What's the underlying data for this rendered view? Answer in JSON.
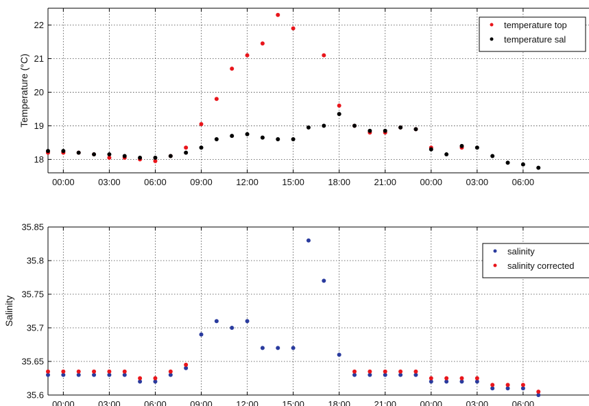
{
  "chart_data": [
    {
      "type": "scatter",
      "ylabel": "Temperature (°C)",
      "xlabel": "",
      "x_tick_labels": [
        "00:00",
        "03:00",
        "06:00",
        "09:00",
        "12:00",
        "15:00",
        "18:00",
        "21:00",
        "00:00",
        "03:00",
        "06:00"
      ],
      "xlim_hours": [
        -1,
        34.3
      ],
      "ylim": [
        17.6,
        22.5
      ],
      "yticks": [
        18,
        19,
        20,
        21,
        22
      ],
      "grid": true,
      "legend_position": "top-right",
      "series": [
        {
          "name": "temperature top",
          "color": "#e8161c",
          "x": [
            -1,
            0,
            1,
            2,
            3,
            4,
            5,
            6,
            7,
            8,
            9,
            10,
            11,
            12,
            13,
            14,
            15,
            17,
            18,
            19,
            20,
            21,
            22,
            23,
            24,
            26
          ],
          "y": [
            18.2,
            18.2,
            18.2,
            18.15,
            18.05,
            18.05,
            18.0,
            17.95,
            18.1,
            18.35,
            19.05,
            19.8,
            20.7,
            21.1,
            21.45,
            22.3,
            21.9,
            21.1,
            19.6,
            19.0,
            18.8,
            18.8,
            18.95,
            18.9,
            18.35,
            18.35
          ]
        },
        {
          "name": "temperature sal",
          "color": "#000000",
          "x": [
            -1,
            0,
            1,
            2,
            3,
            4,
            5,
            6,
            7,
            8,
            9,
            10,
            11,
            12,
            13,
            14,
            15,
            16,
            17,
            18,
            19,
            20,
            21,
            22,
            23,
            24,
            25,
            26,
            27,
            28,
            29,
            30,
            31
          ],
          "y": [
            18.25,
            18.25,
            18.2,
            18.15,
            18.15,
            18.1,
            18.05,
            18.05,
            18.1,
            18.2,
            18.35,
            18.6,
            18.7,
            18.75,
            18.65,
            18.6,
            18.6,
            18.95,
            19.0,
            19.35,
            19.0,
            18.85,
            18.85,
            18.95,
            18.9,
            18.3,
            18.15,
            18.4,
            18.35,
            18.1,
            17.9,
            17.85,
            17.75
          ]
        }
      ]
    },
    {
      "type": "scatter",
      "ylabel": "Salinity",
      "xlabel": "",
      "x_tick_labels": [
        "00:00",
        "03:00",
        "06:00",
        "09:00",
        "12:00",
        "15:00",
        "18:00",
        "21:00",
        "00:00",
        "03:00",
        "06:00"
      ],
      "xlim_hours": [
        -1,
        34.3
      ],
      "ylim": [
        35.6,
        35.85
      ],
      "yticks": [
        35.6,
        35.65,
        35.7,
        35.75,
        35.8,
        35.85
      ],
      "grid": true,
      "legend_position": "top-right",
      "series": [
        {
          "name": "salinity",
          "color": "#2a3b9e",
          "x": [
            -1,
            0,
            1,
            2,
            3,
            4,
            5,
            6,
            7,
            8,
            9,
            10,
            11,
            12,
            13,
            14,
            15,
            16,
            17,
            18,
            19,
            20,
            21,
            22,
            23,
            24,
            25,
            26,
            27,
            28,
            29,
            30,
            31
          ],
          "y": [
            35.63,
            35.63,
            35.63,
            35.63,
            35.63,
            35.63,
            35.62,
            35.62,
            35.63,
            35.64,
            35.69,
            35.71,
            35.7,
            35.71,
            35.67,
            35.67,
            35.67,
            35.83,
            35.77,
            35.66,
            35.63,
            35.63,
            35.63,
            35.63,
            35.63,
            35.62,
            35.62,
            35.62,
            35.62,
            35.61,
            35.61,
            35.61,
            35.6
          ]
        },
        {
          "name": "salinity corrected",
          "color": "#e8161c",
          "x": [
            -1,
            0,
            1,
            2,
            3,
            4,
            5,
            6,
            7,
            8,
            19,
            20,
            21,
            22,
            23,
            24,
            25,
            26,
            27,
            28,
            29,
            30,
            31
          ],
          "y": [
            35.635,
            35.635,
            35.635,
            35.635,
            35.635,
            35.635,
            35.625,
            35.625,
            35.635,
            35.645,
            35.635,
            35.635,
            35.635,
            35.635,
            35.635,
            35.625,
            35.625,
            35.625,
            35.625,
            35.615,
            35.615,
            35.615,
            35.605
          ]
        }
      ]
    }
  ]
}
